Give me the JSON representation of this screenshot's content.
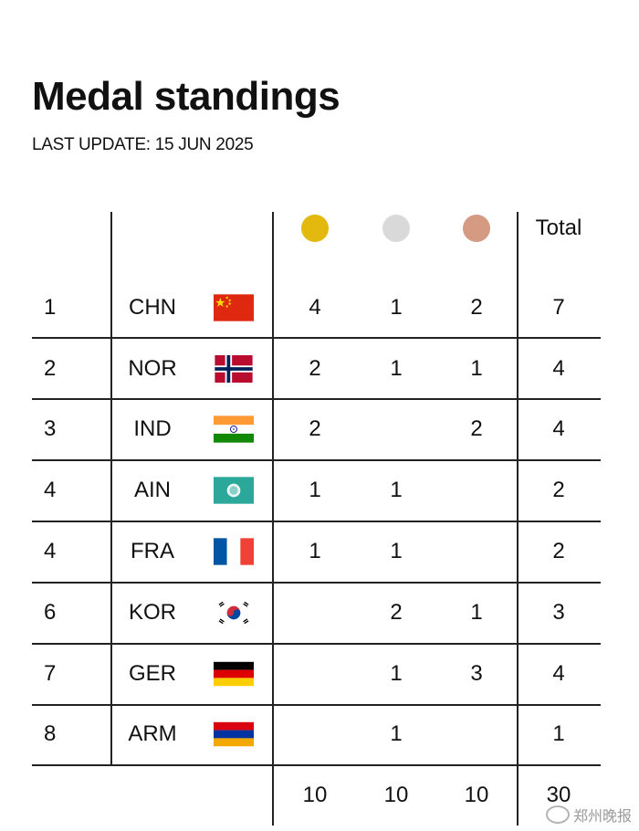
{
  "header": {
    "title": "Medal standings",
    "subtitle": "LAST UPDATE: 15 JUN 2025"
  },
  "table": {
    "columns": {
      "gold_icon": "gold-medal-icon",
      "silver_icon": "silver-medal-icon",
      "bronze_icon": "bronze-medal-icon",
      "total_label": "Total"
    },
    "medal_colors": {
      "gold": "#E3B80F",
      "silver": "#D9D9D9",
      "bronze": "#D49B82"
    },
    "rows": [
      {
        "rank": "1",
        "code": "CHN",
        "flag": "china-flag-icon",
        "gold": "4",
        "silver": "1",
        "bronze": "2",
        "total": "7"
      },
      {
        "rank": "2",
        "code": "NOR",
        "flag": "norway-flag-icon",
        "gold": "2",
        "silver": "1",
        "bronze": "1",
        "total": "4"
      },
      {
        "rank": "3",
        "code": "IND",
        "flag": "india-flag-icon",
        "gold": "2",
        "silver": "",
        "bronze": "2",
        "total": "4"
      },
      {
        "rank": "4",
        "code": "AIN",
        "flag": "ain-flag-icon",
        "gold": "1",
        "silver": "1",
        "bronze": "",
        "total": "2"
      },
      {
        "rank": "4",
        "code": "FRA",
        "flag": "france-flag-icon",
        "gold": "1",
        "silver": "1",
        "bronze": "",
        "total": "2"
      },
      {
        "rank": "6",
        "code": "KOR",
        "flag": "korea-flag-icon",
        "gold": "",
        "silver": "2",
        "bronze": "1",
        "total": "3"
      },
      {
        "rank": "7",
        "code": "GER",
        "flag": "germany-flag-icon",
        "gold": "",
        "silver": "1",
        "bronze": "3",
        "total": "4"
      },
      {
        "rank": "8",
        "code": "ARM",
        "flag": "armenia-flag-icon",
        "gold": "",
        "silver": "1",
        "bronze": "",
        "total": "1"
      }
    ],
    "totals": {
      "gold": "10",
      "silver": "10",
      "bronze": "10",
      "total": "30"
    }
  },
  "watermark": {
    "text": "郑州晚报",
    "icon": "weibo-icon"
  }
}
